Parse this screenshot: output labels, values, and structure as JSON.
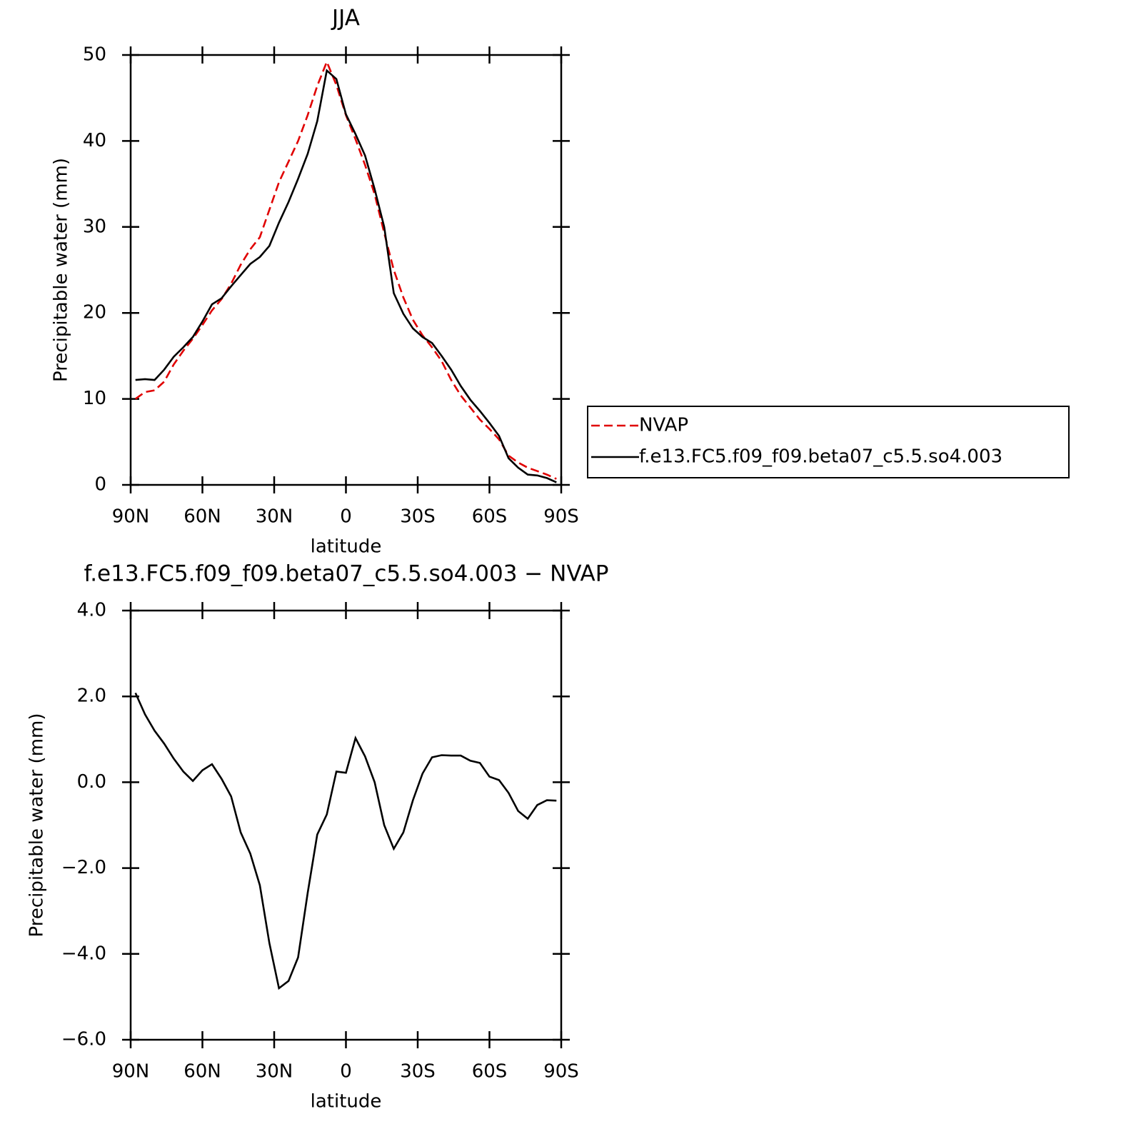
{
  "chart_data": [
    {
      "type": "line",
      "title": "JJA",
      "xlabel": "latitude",
      "ylabel": "Precipitable water (mm)",
      "x": [
        88,
        84,
        80,
        76,
        72,
        68,
        64,
        60,
        56,
        52,
        48,
        44,
        40,
        36,
        32,
        28,
        24,
        20,
        16,
        12,
        8,
        4,
        0,
        -4,
        -8,
        -12,
        -16,
        -20,
        -24,
        -28,
        -32,
        -36,
        -40,
        -44,
        -48,
        -52,
        -56,
        -60,
        -64,
        -68,
        -72,
        -76,
        -80,
        -84,
        -88
      ],
      "xlim": [
        90,
        -90
      ],
      "xticks": [
        {
          "value": 90,
          "label": "90N"
        },
        {
          "value": 60,
          "label": "60N"
        },
        {
          "value": 30,
          "label": "30N"
        },
        0,
        {
          "value": -30,
          "label": "30S"
        },
        {
          "value": -60,
          "label": "60S"
        },
        {
          "value": -90,
          "label": "90S"
        }
      ],
      "ylim": [
        0,
        50
      ],
      "yticks": [
        0,
        10,
        20,
        30,
        40,
        50
      ],
      "legend": "right",
      "series": [
        {
          "name": "NVAP",
          "color": "#e00000",
          "dashed": true,
          "values": [
            10.0,
            10.8,
            11.0,
            12.0,
            14.0,
            15.6,
            17.0,
            18.6,
            20.3,
            21.6,
            23.4,
            25.6,
            27.4,
            28.8,
            32.0,
            35.2,
            37.6,
            40.0,
            43.0,
            46.4,
            49.2,
            46.5,
            43.0,
            40.2,
            37.2,
            33.8,
            29.3,
            25.0,
            21.8,
            19.2,
            17.4,
            16.0,
            14.4,
            12.2,
            10.4,
            9.0,
            7.6,
            6.5,
            5.3,
            3.4,
            2.6,
            2.0,
            1.6,
            1.2,
            0.7
          ]
        },
        {
          "name": "f.e13.FC5.f09_f09.beta07_c5.5.so4.003",
          "color": "#000000",
          "dashed": false,
          "values": [
            12.2,
            12.3,
            12.2,
            13.4,
            14.9,
            16.0,
            17.2,
            19.0,
            21.0,
            21.7,
            23.1,
            24.4,
            25.7,
            26.5,
            27.8,
            30.5,
            32.9,
            35.6,
            38.5,
            42.3,
            48.2,
            47.2,
            43.1,
            40.8,
            38.3,
            34.4,
            30.0,
            22.3,
            19.9,
            18.2,
            17.2,
            16.5,
            15.0,
            13.4,
            11.5,
            9.9,
            8.6,
            7.2,
            5.7,
            3.1,
            2.0,
            1.2,
            1.1,
            0.8,
            0.3
          ]
        }
      ]
    },
    {
      "type": "line",
      "title": "f.e13.FC5.f09_f09.beta07_c5.5.so4.003 − NVAP",
      "xlabel": "latitude",
      "ylabel": "Precipitable water (mm)",
      "x": [
        88,
        84,
        80,
        76,
        72,
        68,
        64,
        60,
        56,
        52,
        48,
        44,
        40,
        36,
        32,
        28,
        24,
        20,
        16,
        12,
        8,
        4,
        0,
        -4,
        -8,
        -12,
        -16,
        -20,
        -24,
        -28,
        -32,
        -36,
        -40,
        -44,
        -48,
        -52,
        -56,
        -60,
        -64,
        -68,
        -72,
        -76,
        -80,
        -84,
        -88
      ],
      "xlim": [
        90,
        -90
      ],
      "xticks": [
        {
          "value": 90,
          "label": "90N"
        },
        {
          "value": 60,
          "label": "60N"
        },
        {
          "value": 30,
          "label": "30N"
        },
        0,
        {
          "value": -30,
          "label": "30S"
        },
        {
          "value": -60,
          "label": "60S"
        },
        {
          "value": -90,
          "label": "90S"
        }
      ],
      "ylim": [
        -6,
        4
      ],
      "yticks": [
        {
          "value": -6,
          "label": "−6.0"
        },
        {
          "value": -4,
          "label": "−4.0"
        },
        {
          "value": -2,
          "label": "−2.0"
        },
        {
          "value": 0,
          "label": "0.0"
        },
        {
          "value": 2,
          "label": "2.0"
        },
        {
          "value": 4,
          "label": "4.0"
        }
      ],
      "series": [
        {
          "color": "#000000",
          "dashed": false,
          "values": [
            2.08,
            1.58,
            1.2,
            0.9,
            0.55,
            0.25,
            0.03,
            0.28,
            0.42,
            0.08,
            -0.33,
            -1.17,
            -1.66,
            -2.4,
            -3.75,
            -4.8,
            -4.63,
            -4.08,
            -2.58,
            -1.22,
            -0.75,
            0.25,
            0.22,
            1.03,
            0.6,
            0.0,
            -1.0,
            -1.55,
            -1.17,
            -0.42,
            0.2,
            0.58,
            0.63,
            0.62,
            0.62,
            0.5,
            0.45,
            0.13,
            0.05,
            -0.25,
            -0.67,
            -0.85,
            -0.53,
            -0.42,
            -0.43
          ]
        }
      ]
    }
  ]
}
